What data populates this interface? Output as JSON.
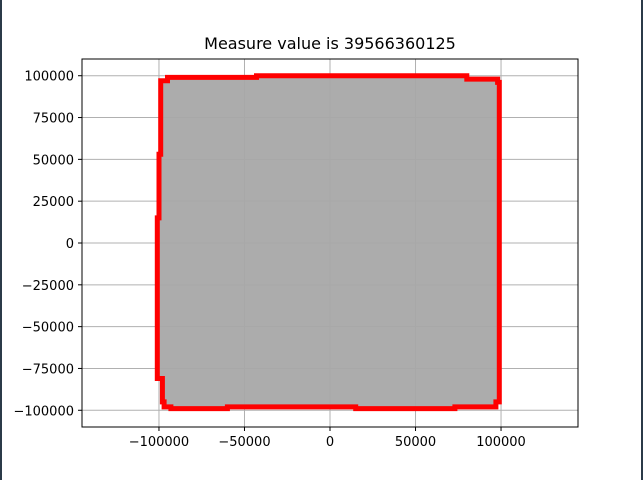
{
  "chart_data": {
    "type": "area",
    "title": "Measure value is 39566360125",
    "xlabel": "",
    "ylabel": "",
    "xlim": [
      -145000,
      145000
    ],
    "ylim": [
      -110000,
      110000
    ],
    "x_ticks": [
      -100000,
      -50000,
      0,
      50000,
      100000
    ],
    "x_tick_labels": [
      "−100000",
      "−50000",
      "0",
      "50000",
      "100000"
    ],
    "y_ticks": [
      -100000,
      -75000,
      -50000,
      -25000,
      0,
      25000,
      50000,
      75000,
      100000
    ],
    "y_tick_labels": [
      "−100000",
      "−75000",
      "−50000",
      "−25000",
      "0",
      "25000",
      "50000",
      "75000",
      "100000"
    ],
    "grid": true,
    "colors": {
      "fill": "#a8a8a8",
      "outline": "#ff0000",
      "grid": "#b0b0b0"
    },
    "series": [
      {
        "kind": "outline",
        "points": [
          [
            -99000,
            95000
          ],
          [
            -99000,
            97000
          ],
          [
            -95000,
            97000
          ],
          [
            -95000,
            99000
          ],
          [
            -43000,
            99000
          ],
          [
            -43000,
            100000
          ],
          [
            80000,
            100000
          ],
          [
            80000,
            98000
          ],
          [
            98000,
            98000
          ],
          [
            98000,
            96000
          ],
          [
            99000,
            96000
          ],
          [
            99000,
            -95000
          ],
          [
            97000,
            -95000
          ],
          [
            97000,
            -98000
          ],
          [
            73000,
            -98000
          ],
          [
            73000,
            -99000
          ],
          [
            15000,
            -99000
          ],
          [
            15000,
            -98000
          ],
          [
            -60000,
            -98000
          ],
          [
            -60000,
            -99000
          ],
          [
            -93000,
            -99000
          ],
          [
            -93000,
            -98000
          ],
          [
            -97000,
            -98000
          ],
          [
            -97000,
            -95000
          ],
          [
            -98000,
            -95000
          ],
          [
            -98000,
            -81000
          ],
          [
            -101000,
            -81000
          ],
          [
            -101000,
            15000
          ],
          [
            -100000,
            15000
          ],
          [
            -100000,
            53000
          ],
          [
            -99000,
            53000
          ],
          [
            -99000,
            95000
          ]
        ]
      }
    ]
  }
}
